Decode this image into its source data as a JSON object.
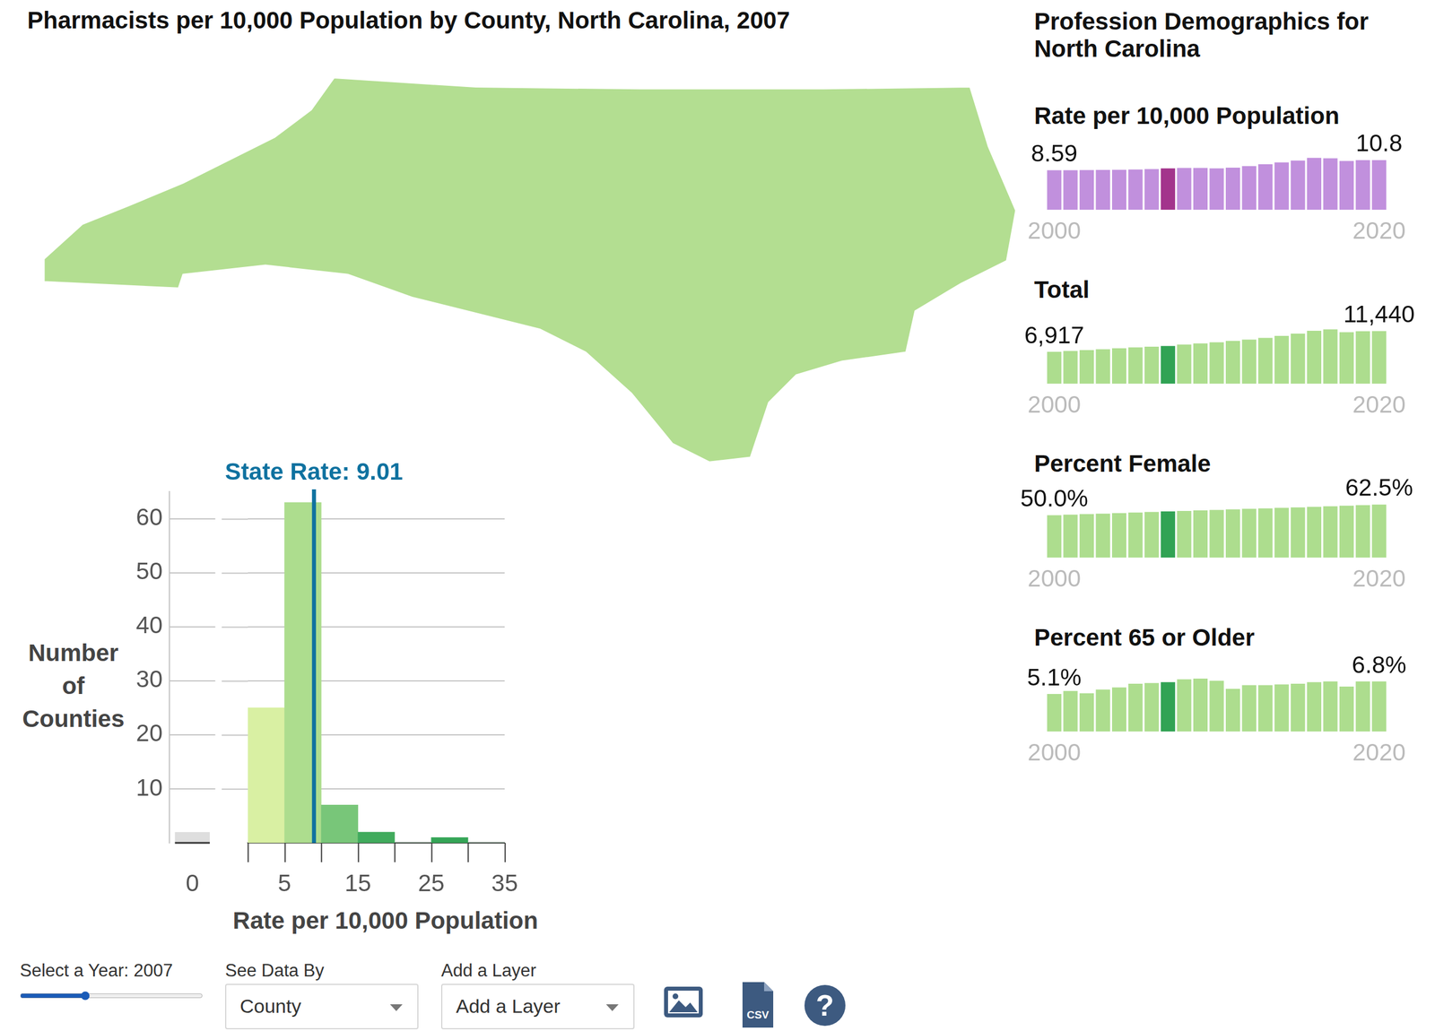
{
  "title": "Pharmacists per 10,000 Population by County, North Carolina, 2007",
  "panel_title": "Profession Demographics for North Carolina",
  "controls": {
    "year_label": "Select a Year: 2007",
    "slider": {
      "min": 2000,
      "max": 2020,
      "value": 2007
    },
    "view_label": "See Data By",
    "view_value": "County",
    "layer_label": "Add a Layer",
    "layer_value": "Add a Layer",
    "csv_icon": "CSV",
    "help_icon": "?"
  },
  "chart_data": [
    {
      "type": "histogram",
      "xlabel": "Rate per 10,000 Population",
      "ylabel": "Number of Counties",
      "bins": [
        0,
        5,
        10,
        15,
        20,
        25,
        30,
        35
      ],
      "counts": [
        25,
        63,
        7,
        2,
        0,
        1,
        0
      ],
      "colors": [
        "#d9f0a3",
        "#addd8e",
        "#78c679",
        "#41ab5d",
        "#41ab5d",
        "#35a557",
        "#35a557"
      ],
      "xlim": [
        0,
        35
      ],
      "xticks": [
        5,
        15,
        25,
        35
      ],
      "ylim": [
        0,
        65
      ],
      "yticks": [
        10,
        20,
        30,
        40,
        50,
        60
      ],
      "grid": true,
      "no_data": {
        "category": "0",
        "count": 2,
        "color": "#dedede"
      },
      "annotations": [
        {
          "x": 9.01,
          "label": "State Rate: 9.01",
          "color": "#0f72a0"
        }
      ]
    },
    {
      "type": "bar",
      "title": "Rate per 10,000 Population",
      "categories": [
        "2000",
        null,
        null,
        null,
        null,
        null,
        null,
        null,
        null,
        null,
        null,
        null,
        null,
        null,
        null,
        null,
        null,
        null,
        null,
        null,
        "2020"
      ],
      "values": [
        8.59,
        8.6,
        8.62,
        8.65,
        8.7,
        8.75,
        8.85,
        9.01,
        9.1,
        9.1,
        9.0,
        9.15,
        9.5,
        9.9,
        10.3,
        10.7,
        11.3,
        11.2,
        10.6,
        10.8,
        10.8
      ],
      "value_labels": [
        "8.59",
        null,
        null,
        null,
        null,
        null,
        null,
        null,
        null,
        null,
        null,
        null,
        null,
        null,
        null,
        null,
        null,
        null,
        null,
        null,
        "10.8"
      ],
      "colors": [
        "#c190dd",
        "#c190dd",
        "#c190dd",
        "#c190dd",
        "#c190dd",
        "#c190dd",
        "#c190dd",
        "#a3348c",
        "#c190dd",
        "#c190dd",
        "#c190dd",
        "#c190dd",
        "#c190dd",
        "#c190dd",
        "#c190dd",
        "#c190dd",
        "#c190dd",
        "#c190dd",
        "#c190dd",
        "#c190dd",
        "#c190dd"
      ],
      "ylim": [
        0,
        12
      ],
      "tick_labels": "x"
    },
    {
      "type": "bar",
      "title": "Total",
      "categories": [
        "2000",
        null,
        null,
        null,
        null,
        null,
        null,
        null,
        null,
        null,
        null,
        null,
        null,
        null,
        null,
        null,
        null,
        null,
        null,
        null,
        "2020"
      ],
      "values": [
        6917,
        7100,
        7300,
        7500,
        7700,
        7900,
        8050,
        8200,
        8500,
        8750,
        9000,
        9300,
        9600,
        9950,
        10400,
        10900,
        11500,
        11800,
        11200,
        11400,
        11440
      ],
      "value_labels": [
        "6,917",
        null,
        null,
        null,
        null,
        null,
        null,
        null,
        null,
        null,
        null,
        null,
        null,
        null,
        null,
        null,
        null,
        null,
        null,
        null,
        "11,440"
      ],
      "colors": [
        "#addd8e",
        "#addd8e",
        "#addd8e",
        "#addd8e",
        "#addd8e",
        "#addd8e",
        "#addd8e",
        "#31a354",
        "#addd8e",
        "#addd8e",
        "#addd8e",
        "#addd8e",
        "#addd8e",
        "#addd8e",
        "#addd8e",
        "#addd8e",
        "#addd8e",
        "#addd8e",
        "#addd8e",
        "#addd8e",
        "#addd8e"
      ],
      "ylim": [
        0,
        12000
      ],
      "tick_labels": "x"
    },
    {
      "type": "bar",
      "title": "Percent Female",
      "categories": [
        "2000",
        null,
        null,
        null,
        null,
        null,
        null,
        null,
        null,
        null,
        null,
        null,
        null,
        null,
        null,
        null,
        null,
        null,
        null,
        null,
        "2020"
      ],
      "values": [
        50.0,
        50.6,
        51.2,
        51.8,
        52.5,
        53.1,
        53.8,
        54.4,
        55.0,
        55.6,
        56.2,
        56.8,
        57.4,
        58.0,
        58.6,
        59.2,
        59.8,
        60.5,
        61.2,
        61.9,
        62.5
      ],
      "value_labels": [
        "50.0%",
        null,
        null,
        null,
        null,
        null,
        null,
        null,
        null,
        null,
        null,
        null,
        null,
        null,
        null,
        null,
        null,
        null,
        null,
        null,
        "62.5%"
      ],
      "colors": [
        "#addd8e",
        "#addd8e",
        "#addd8e",
        "#addd8e",
        "#addd8e",
        "#addd8e",
        "#addd8e",
        "#31a354",
        "#addd8e",
        "#addd8e",
        "#addd8e",
        "#addd8e",
        "#addd8e",
        "#addd8e",
        "#addd8e",
        "#addd8e",
        "#addd8e",
        "#addd8e",
        "#addd8e",
        "#addd8e",
        "#addd8e"
      ],
      "ylim": [
        0,
        65
      ],
      "tick_labels": "x"
    },
    {
      "type": "bar",
      "title": "Percent 65 or Older",
      "categories": [
        "2000",
        null,
        null,
        null,
        null,
        null,
        null,
        null,
        null,
        null,
        null,
        null,
        null,
        null,
        null,
        null,
        null,
        null,
        null,
        null,
        "2020"
      ],
      "values": [
        5.1,
        5.5,
        5.2,
        5.7,
        6.0,
        6.5,
        6.6,
        6.7,
        7.1,
        7.2,
        6.9,
        5.8,
        6.3,
        6.3,
        6.4,
        6.5,
        6.7,
        6.8,
        6.1,
        6.8,
        6.8
      ],
      "value_labels": [
        "5.1%",
        null,
        null,
        null,
        null,
        null,
        null,
        null,
        null,
        null,
        null,
        null,
        null,
        null,
        null,
        null,
        null,
        null,
        null,
        null,
        "6.8%"
      ],
      "colors": [
        "#addd8e",
        "#addd8e",
        "#addd8e",
        "#addd8e",
        "#addd8e",
        "#addd8e",
        "#addd8e",
        "#31a354",
        "#addd8e",
        "#addd8e",
        "#addd8e",
        "#addd8e",
        "#addd8e",
        "#addd8e",
        "#addd8e",
        "#addd8e",
        "#addd8e",
        "#addd8e",
        "#addd8e",
        "#addd8e",
        "#addd8e"
      ],
      "ylim": [
        0,
        7.5
      ],
      "tick_labels": "x"
    }
  ]
}
